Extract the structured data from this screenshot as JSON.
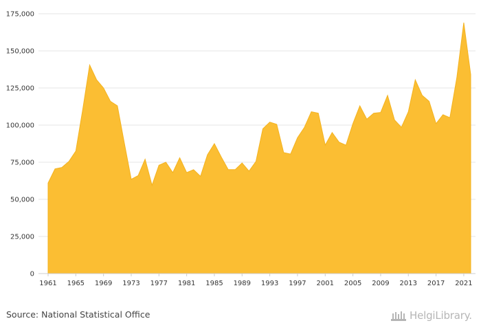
{
  "chart_data": {
    "type": "area",
    "title": "",
    "xlabel": "",
    "ylabel": "",
    "x": [
      1961,
      1962,
      1963,
      1964,
      1965,
      1966,
      1967,
      1968,
      1969,
      1970,
      1971,
      1972,
      1973,
      1974,
      1975,
      1976,
      1977,
      1978,
      1979,
      1980,
      1981,
      1982,
      1983,
      1984,
      1985,
      1986,
      1987,
      1988,
      1989,
      1990,
      1991,
      1992,
      1993,
      1994,
      1995,
      1996,
      1997,
      1998,
      1999,
      2000,
      2001,
      2002,
      2003,
      2004,
      2005,
      2006,
      2007,
      2008,
      2009,
      2010,
      2011,
      2012,
      2013,
      2014,
      2015,
      2016,
      2017,
      2018,
      2019,
      2020,
      2021,
      2022
    ],
    "values": [
      61000,
      70500,
      71500,
      75500,
      82500,
      110500,
      140500,
      130500,
      125000,
      116000,
      113000,
      88000,
      63500,
      66000,
      77000,
      59500,
      73000,
      75000,
      68000,
      78000,
      68000,
      70000,
      65500,
      80000,
      87500,
      78500,
      70000,
      70000,
      74500,
      69000,
      75500,
      97500,
      102000,
      100500,
      81500,
      80500,
      91500,
      98500,
      109000,
      108000,
      86500,
      95000,
      88500,
      86500,
      101000,
      113000,
      104000,
      108000,
      108500,
      120000,
      103500,
      98500,
      109000,
      130500,
      120000,
      116000,
      101000,
      107000,
      105000,
      132000,
      169000,
      134000
    ],
    "ylim": [
      0,
      175000
    ],
    "y_ticks": [
      0,
      25000,
      50000,
      75000,
      100000,
      125000,
      150000,
      175000
    ],
    "y_tick_labels": [
      "0",
      "25,000",
      "50,000",
      "75,000",
      "100,000",
      "125,000",
      "150,000",
      "175,000"
    ],
    "x_tick_labels": [
      "1961",
      "1965",
      "1969",
      "1973",
      "1977",
      "1981",
      "1985",
      "1989",
      "1993",
      "1997",
      "2001",
      "2005",
      "2009",
      "2013",
      "2017",
      "2021"
    ],
    "grid": true,
    "fill_color": "#FBBE33",
    "line_color": "#F3B21F",
    "grid_color": "#E6E6E6"
  },
  "footer": {
    "source": "Source: National Statistical Office",
    "logo_text": "HelgiLibrary."
  }
}
